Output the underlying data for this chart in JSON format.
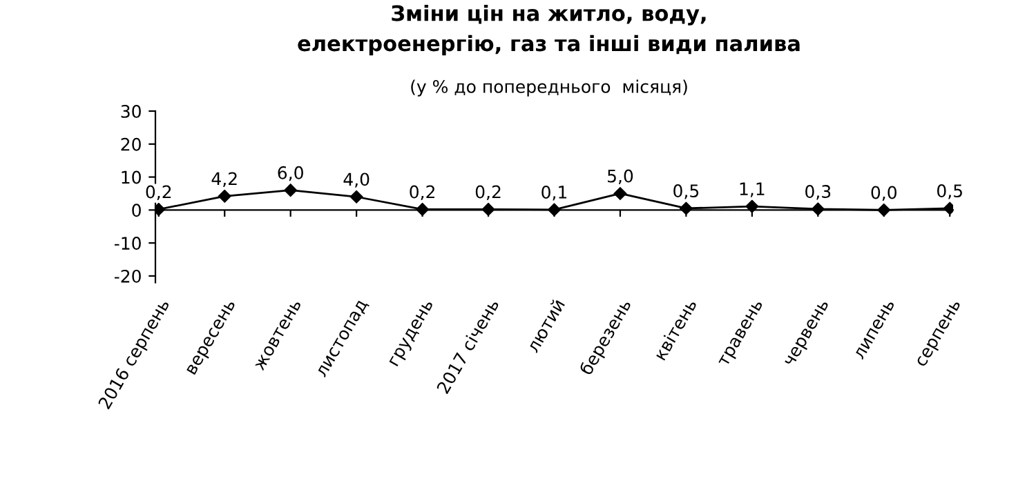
{
  "chart_data": {
    "type": "line",
    "title": "Зміни цін на житло, воду,\nелектроенергію, газ та інші види палива",
    "subtitle": "(у % до попереднього  місяця)",
    "categories": [
      "2016 серпень",
      "вересень",
      "жовтень",
      "листопад",
      "грудень",
      "2017 січень",
      "лютий",
      "березень",
      "квітень",
      "травень",
      "червень",
      "липень",
      "серпень"
    ],
    "values": [
      0.2,
      4.2,
      6.0,
      4.0,
      0.2,
      0.2,
      0.1,
      5.0,
      0.5,
      1.1,
      0.3,
      0.0,
      0.5
    ],
    "value_labels": [
      "0,2",
      "4,2",
      "6,0",
      "4,0",
      "0,2",
      "0,2",
      "0,1",
      "5,0",
      "0,5",
      "1,1",
      "0,3",
      "0,0",
      "0,5"
    ],
    "color": "#000000",
    "marker": "diamond",
    "line_style": "solid",
    "ylim": [
      -22,
      30
    ],
    "yticks": [
      -20,
      -10,
      0,
      10,
      20,
      30
    ]
  }
}
